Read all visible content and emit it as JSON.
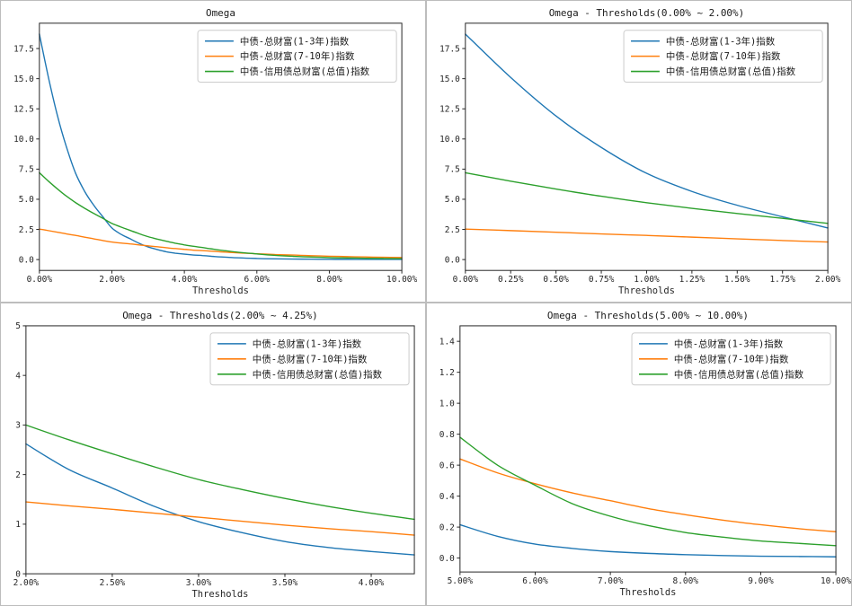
{
  "figure": {
    "background": "#ffffff",
    "panel_border_color": "#bdbdbd",
    "axes_color": "#262626"
  },
  "chart_data": {
    "type": "line",
    "grid": false,
    "legend_position": "upper right",
    "x_unit": "%",
    "series": [
      {
        "name": "中债-总财富(1-3年)指数",
        "color": "#1f77b4",
        "x": [
          0,
          0.25,
          0.5,
          0.75,
          1,
          1.25,
          1.5,
          1.75,
          2,
          2.25,
          2.5,
          2.75,
          3,
          3.25,
          3.5,
          3.75,
          4,
          4.25,
          4.5,
          4.75,
          5,
          5.5,
          6,
          6.5,
          7,
          7.5,
          8,
          8.5,
          9,
          9.5,
          10
        ],
        "y": [
          18.7,
          15.1,
          11.9,
          9.3,
          7.15,
          5.65,
          4.5,
          3.55,
          2.62,
          2.1,
          1.73,
          1.35,
          1.05,
          0.83,
          0.65,
          0.53,
          0.45,
          0.38,
          0.33,
          0.27,
          0.215,
          0.14,
          0.09,
          0.062,
          0.042,
          0.03,
          0.022,
          0.016,
          0.012,
          0.01,
          0.008
        ]
      },
      {
        "name": "中债-总财富(7-10年)指数",
        "color": "#ff7f0e",
        "x": [
          0,
          0.25,
          0.5,
          0.75,
          1,
          1.25,
          1.5,
          1.75,
          2,
          2.25,
          2.5,
          2.75,
          3,
          3.25,
          3.5,
          3.75,
          4,
          4.25,
          4.5,
          4.75,
          5,
          5.5,
          6,
          6.5,
          7,
          7.5,
          8,
          8.5,
          9,
          9.5,
          10
        ],
        "y": [
          2.53,
          2.4,
          2.27,
          2.13,
          2.0,
          1.86,
          1.72,
          1.58,
          1.45,
          1.37,
          1.3,
          1.22,
          1.14,
          1.06,
          0.98,
          0.91,
          0.85,
          0.78,
          0.74,
          0.69,
          0.64,
          0.55,
          0.48,
          0.42,
          0.37,
          0.32,
          0.28,
          0.245,
          0.215,
          0.19,
          0.17
        ]
      },
      {
        "name": "中债-信用债总财富(总值)指数",
        "color": "#2ca02c",
        "x": [
          0,
          0.25,
          0.5,
          0.75,
          1,
          1.25,
          1.5,
          1.75,
          2,
          2.25,
          2.5,
          2.75,
          3,
          3.25,
          3.5,
          3.75,
          4,
          4.25,
          4.5,
          4.75,
          5,
          5.5,
          6,
          6.5,
          7,
          7.5,
          8,
          8.5,
          9,
          9.5,
          10
        ],
        "y": [
          7.2,
          6.5,
          5.85,
          5.25,
          4.72,
          4.25,
          3.82,
          3.42,
          3.0,
          2.7,
          2.42,
          2.15,
          1.9,
          1.7,
          1.52,
          1.36,
          1.22,
          1.1,
          1.0,
          0.88,
          0.78,
          0.6,
          0.47,
          0.35,
          0.27,
          0.21,
          0.165,
          0.135,
          0.11,
          0.095,
          0.08
        ]
      }
    ],
    "panels": [
      {
        "title": "Omega",
        "xlabel": "Thresholds",
        "xlim": [
          0,
          10
        ],
        "ylim": [
          -0.9,
          19.6
        ],
        "x_ticks": [
          0,
          2,
          4,
          6,
          8,
          10
        ],
        "x_tick_labels": [
          "0.00%",
          "2.00%",
          "4.00%",
          "6.00%",
          "8.00%",
          "10.00%"
        ],
        "y_ticks": [
          0,
          2.5,
          5,
          7.5,
          10,
          12.5,
          15,
          17.5
        ],
        "y_tick_labels": [
          "0.0",
          "2.5",
          "5.0",
          "7.5",
          "10.0",
          "12.5",
          "15.0",
          "17.5"
        ]
      },
      {
        "title": "Omega - Thresholds(0.00% ~ 2.00%)",
        "xlabel": "Thresholds",
        "xlim": [
          0,
          2
        ],
        "ylim": [
          -0.9,
          19.6
        ],
        "x_ticks": [
          0,
          0.25,
          0.5,
          0.75,
          1,
          1.25,
          1.5,
          1.75,
          2
        ],
        "x_tick_labels": [
          "0.00%",
          "0.25%",
          "0.50%",
          "0.75%",
          "1.00%",
          "1.25%",
          "1.50%",
          "1.75%",
          "2.00%"
        ],
        "y_ticks": [
          0,
          2.5,
          5,
          7.5,
          10,
          12.5,
          15,
          17.5
        ],
        "y_tick_labels": [
          "0.0",
          "2.5",
          "5.0",
          "7.5",
          "10.0",
          "12.5",
          "15.0",
          "17.5"
        ]
      },
      {
        "title": "Omega - Thresholds(2.00% ~ 4.25%)",
        "xlabel": "Thresholds",
        "xlim": [
          2,
          4.25
        ],
        "ylim": [
          0,
          5
        ],
        "x_ticks": [
          2,
          2.5,
          3,
          3.5,
          4
        ],
        "x_tick_labels": [
          "2.00%",
          "2.50%",
          "3.00%",
          "3.50%",
          "4.00%"
        ],
        "y_ticks": [
          0,
          1,
          2,
          3,
          4,
          5
        ],
        "y_tick_labels": [
          "0",
          "1",
          "2",
          "3",
          "4",
          "5"
        ]
      },
      {
        "title": "Omega - Thresholds(5.00% ~ 10.00%)",
        "xlabel": "Thresholds",
        "xlim": [
          5,
          10
        ],
        "ylim": [
          -0.09,
          1.5
        ],
        "x_ticks": [
          5,
          6,
          7,
          8,
          9,
          10
        ],
        "x_tick_labels": [
          "5.00%",
          "6.00%",
          "7.00%",
          "8.00%",
          "9.00%",
          "10.00%"
        ],
        "y_ticks": [
          0,
          0.2,
          0.4,
          0.6,
          0.8,
          1.0,
          1.2,
          1.4
        ],
        "y_tick_labels": [
          "0.0",
          "0.2",
          "0.4",
          "0.6",
          "0.8",
          "1.0",
          "1.2",
          "1.4"
        ]
      }
    ]
  }
}
